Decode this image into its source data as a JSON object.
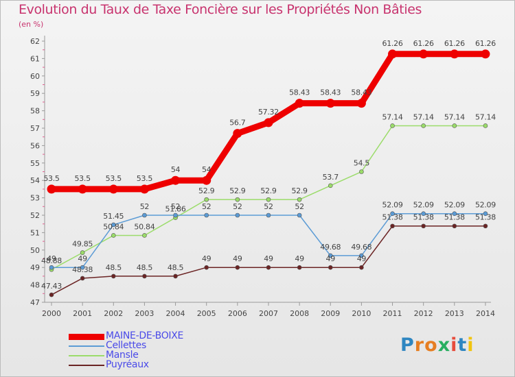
{
  "chart_data": {
    "type": "line",
    "title": "Evolution du Taux de Taxe Foncière sur les Propriétés Non Bâties",
    "subtitle": "(en %)",
    "xlabel": "",
    "ylabel": "",
    "ylim": [
      47,
      62
    ],
    "yticks": [
      "47",
      "48",
      "49",
      "50",
      "51",
      "52",
      "53",
      "54",
      "55",
      "56",
      "57",
      "58",
      "59",
      "60",
      "61",
      "62"
    ],
    "categories": [
      "2000",
      "2001",
      "2002",
      "2003",
      "2004",
      "2005",
      "2006",
      "2007",
      "2008",
      "2009",
      "2010",
      "2011",
      "2012",
      "2013",
      "2014"
    ],
    "grid": false,
    "legend": "bottom-left",
    "series": [
      {
        "name": "MAINE-DE-BOIXE",
        "color": "#ee0000",
        "values": [
          53.5,
          53.5,
          53.5,
          53.5,
          54,
          54,
          56.7,
          57.32,
          58.43,
          58.43,
          58.43,
          61.26,
          61.26,
          61.26,
          61.26
        ],
        "labels": [
          "53.5",
          "53.5",
          "53.5",
          "53.5",
          "54",
          "54",
          "56.7",
          "57.32",
          "58.43",
          "58.43",
          "58.43",
          "61.26",
          "61.26",
          "61.26",
          "61.26"
        ]
      },
      {
        "name": "Cellettes",
        "color": "#5b9bd5",
        "values": [
          49,
          49,
          51.45,
          52,
          52,
          52,
          52,
          52,
          52,
          49.68,
          49.68,
          52.09,
          52.09,
          52.09,
          52.09
        ],
        "labels": [
          "49",
          "49",
          "51.45",
          "52",
          "52",
          "52",
          "52",
          "52",
          "52",
          "49.68",
          "49.68",
          "52.09",
          "52.09",
          "52.09",
          "52.09"
        ]
      },
      {
        "name": "Mansle",
        "color": "#9bdc6a",
        "values": [
          48.88,
          49.85,
          50.84,
          50.84,
          51.86,
          52.9,
          52.9,
          52.9,
          52.9,
          53.7,
          54.5,
          57.14,
          57.14,
          57.14,
          57.14
        ],
        "labels": [
          "48.88",
          "49.85",
          "50.84",
          "50.84",
          "51.86",
          "52.9",
          "52.9",
          "52.9",
          "52.9",
          "53.7",
          "54.5",
          "57.14",
          "57.14",
          "57.14",
          "57.14"
        ]
      },
      {
        "name": "Puyréaux",
        "color": "#6b2424",
        "values": [
          47.43,
          48.38,
          48.5,
          48.5,
          48.5,
          49,
          49,
          49,
          49,
          49,
          49,
          51.38,
          51.38,
          51.38,
          51.38
        ],
        "labels": [
          "47.43",
          "48.38",
          "48.5",
          "48.5",
          "48.5",
          "49",
          "49",
          "49",
          "49",
          "49",
          "49",
          "51.38",
          "51.38",
          "51.38",
          "51.38"
        ]
      }
    ]
  },
  "logo": {
    "text": "Proxiti"
  }
}
